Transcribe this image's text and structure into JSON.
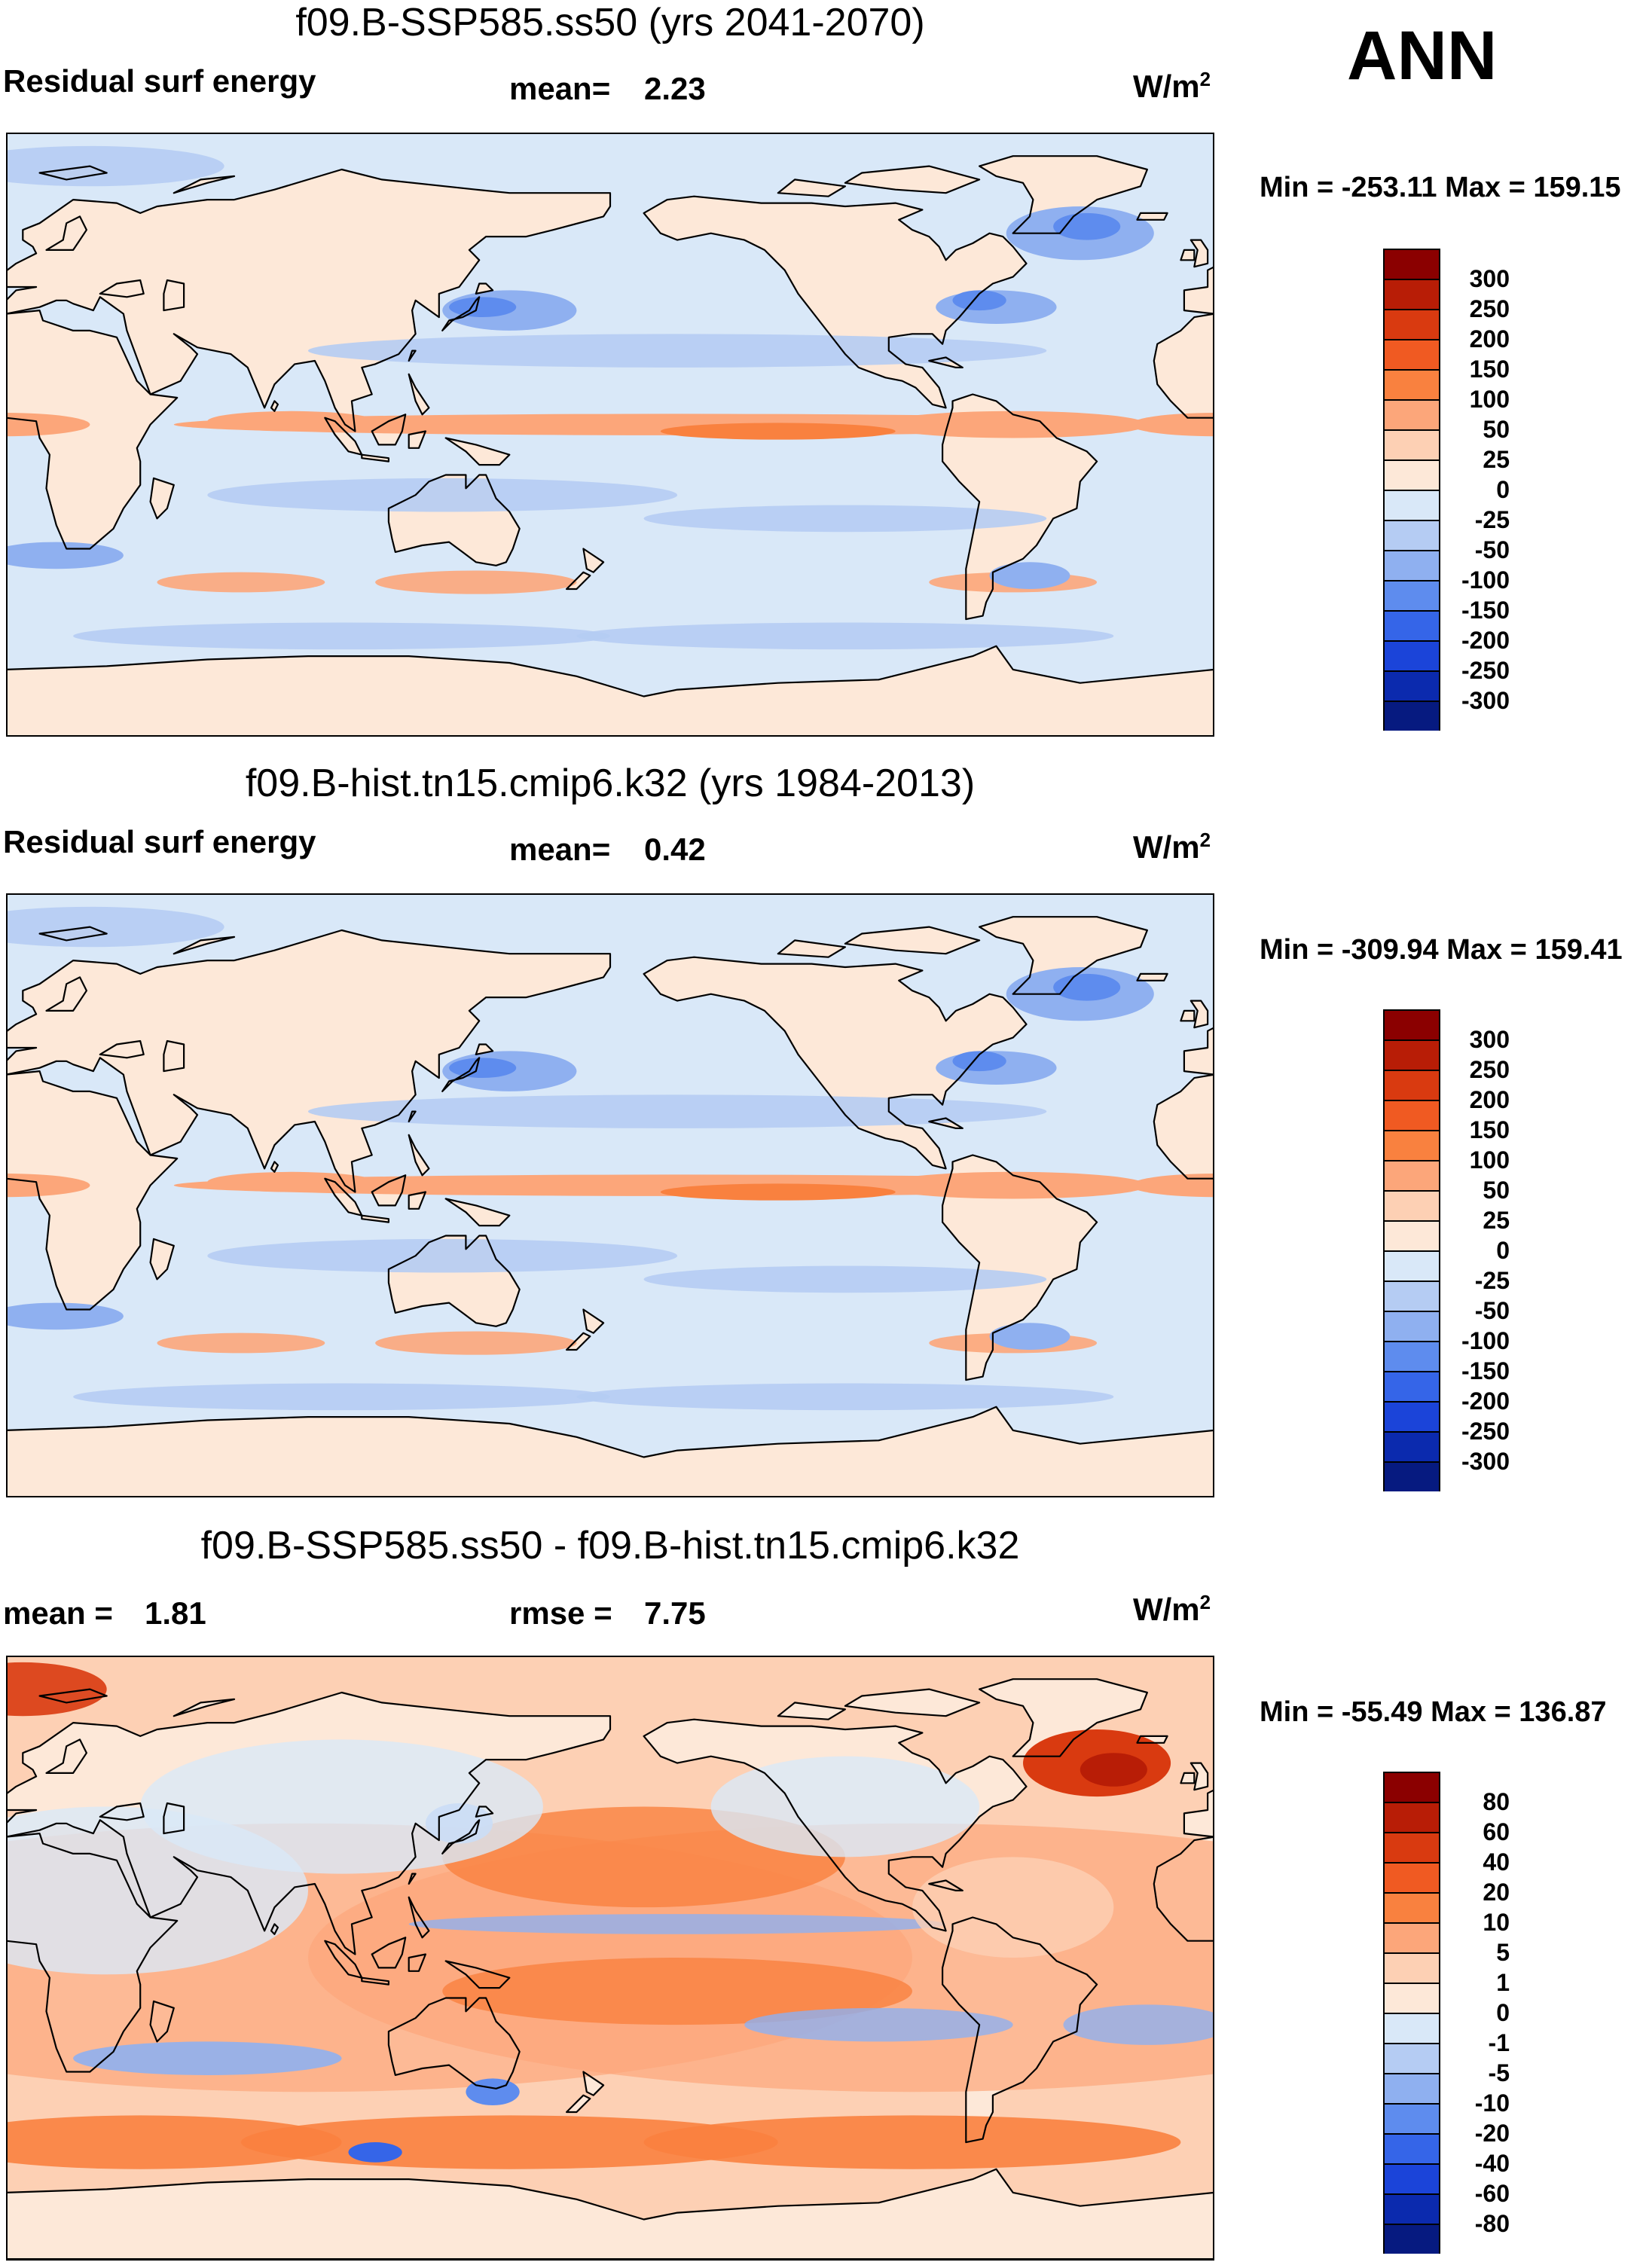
{
  "season": "ANN",
  "chart_data": [
    {
      "type": "heatmap",
      "title": "f09.B-SSP585.ss50 (yrs 2041-2070)",
      "left_label": "Residual surf energy",
      "center_label": "mean=",
      "center_value": "2.23",
      "units": "W/m",
      "units_exp": "2",
      "min_label": "Min =",
      "min_value": "-253.11",
      "max_label": "Max =",
      "max_value": "159.15",
      "colorbar_levels": [
        "300",
        "250",
        "200",
        "150",
        "100",
        "50",
        "25",
        "0",
        "-25",
        "-50",
        "-100",
        "-150",
        "-200",
        "-250",
        "-300"
      ],
      "colorbar_colors": [
        "#8b0000",
        "#b81d06",
        "#d93a10",
        "#f05a22",
        "#f9813f",
        "#fca67a",
        "#fdd0b4",
        "#fde8d8",
        "#d9e8f8",
        "#b5ccf3",
        "#8fb0f0",
        "#5e8cee",
        "#3565e8",
        "#1b44d9",
        "#0b2aae",
        "#061a80"
      ],
      "field": "control"
    },
    {
      "type": "heatmap",
      "title": "f09.B-hist.tn15.cmip6.k32 (yrs 1984-2013)",
      "left_label": "Residual surf energy",
      "center_label": "mean=",
      "center_value": "0.42",
      "units": "W/m",
      "units_exp": "2",
      "min_label": "Min =",
      "min_value": "-309.94",
      "max_label": "Max =",
      "max_value": "159.41",
      "colorbar_levels": [
        "300",
        "250",
        "200",
        "150",
        "100",
        "50",
        "25",
        "0",
        "-25",
        "-50",
        "-100",
        "-150",
        "-200",
        "-250",
        "-300"
      ],
      "colorbar_colors": [
        "#8b0000",
        "#b81d06",
        "#d93a10",
        "#f05a22",
        "#f9813f",
        "#fca67a",
        "#fdd0b4",
        "#fde8d8",
        "#d9e8f8",
        "#b5ccf3",
        "#8fb0f0",
        "#5e8cee",
        "#3565e8",
        "#1b44d9",
        "#0b2aae",
        "#061a80"
      ],
      "field": "control"
    },
    {
      "type": "heatmap",
      "title": "f09.B-SSP585.ss50 - f09.B-hist.tn15.cmip6.k32",
      "left_label": "mean =",
      "left_value": "1.81",
      "center_label": "rmse =",
      "center_value": "7.75",
      "units": "W/m",
      "units_exp": "2",
      "min_label": "Min =",
      "min_value": "-55.49",
      "max_label": "Max =",
      "max_value": "136.87",
      "colorbar_levels": [
        "80",
        "60",
        "40",
        "20",
        "10",
        "5",
        "1",
        "0",
        "-1",
        "-5",
        "-10",
        "-20",
        "-40",
        "-60",
        "-80"
      ],
      "colorbar_colors": [
        "#8b0000",
        "#b81d06",
        "#d93a10",
        "#f05a22",
        "#f9813f",
        "#fca67a",
        "#fdd0b4",
        "#fde8d8",
        "#d9e8f8",
        "#b5ccf3",
        "#8fb0f0",
        "#5e8cee",
        "#3565e8",
        "#1b44d9",
        "#0b2aae",
        "#061a80"
      ],
      "field": "difference"
    }
  ]
}
